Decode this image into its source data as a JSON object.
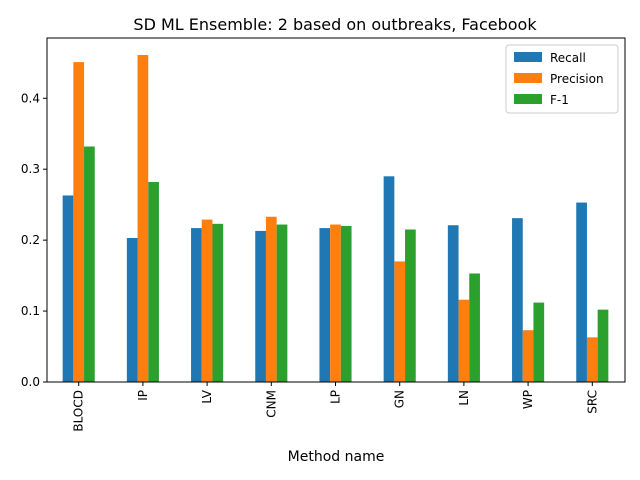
{
  "chart_data": {
    "type": "bar",
    "title": "SD ML Ensemble: 2 based on outbreaks, Facebook",
    "xlabel": "Method name",
    "ylabel": "",
    "ylim": [
      0,
      0.485
    ],
    "yticks": [
      0.0,
      0.1,
      0.2,
      0.3,
      0.4
    ],
    "ytick_labels": [
      "0.0",
      "0.1",
      "0.2",
      "0.3",
      "0.4"
    ],
    "categories": [
      "BLOCD",
      "IP",
      "LV",
      "CNM",
      "LP",
      "GN",
      "LN",
      "WP",
      "SRC"
    ],
    "legend_position": "top-right",
    "grid": false,
    "series": [
      {
        "name": "Recall",
        "color": "#1f77b4",
        "values": [
          0.263,
          0.203,
          0.217,
          0.213,
          0.217,
          0.29,
          0.221,
          0.231,
          0.253
        ]
      },
      {
        "name": "Precision",
        "color": "#ff7f0e",
        "values": [
          0.451,
          0.461,
          0.229,
          0.233,
          0.222,
          0.17,
          0.116,
          0.073,
          0.063
        ]
      },
      {
        "name": "F-1",
        "color": "#2ca02c",
        "values": [
          0.332,
          0.282,
          0.223,
          0.222,
          0.22,
          0.215,
          0.153,
          0.112,
          0.102
        ]
      }
    ]
  }
}
